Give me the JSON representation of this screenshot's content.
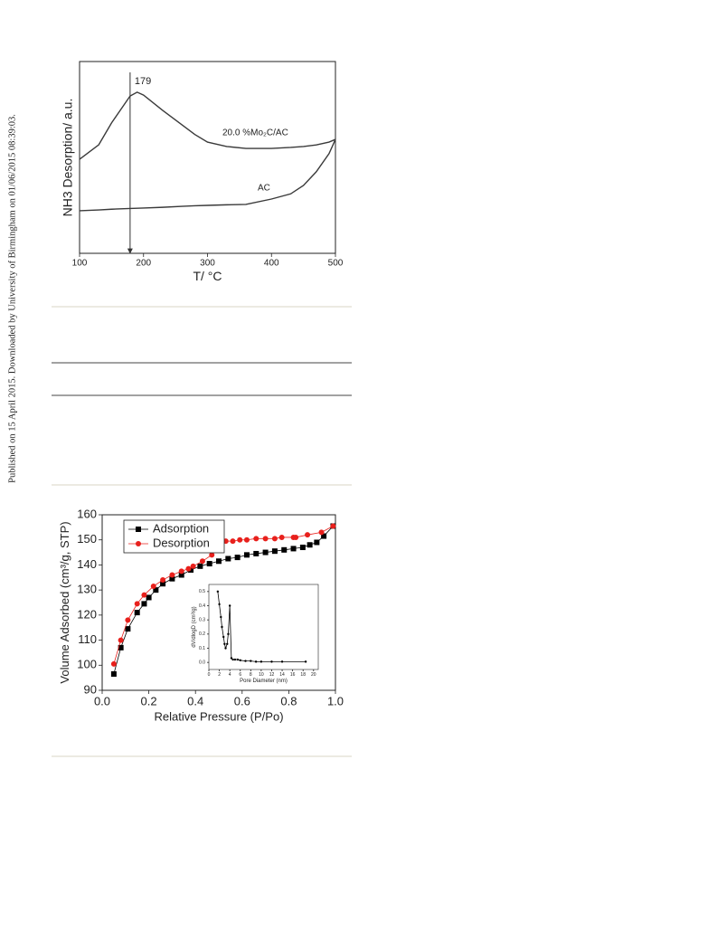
{
  "side_note": "Published on 15 April 2015. Downloaded by University of Birmingham on 01/06/2015 08:39:03.",
  "chart_data": [
    {
      "type": "line",
      "x_label": "T/ °C",
      "y_label": "NH3 Desorption/ a.u.",
      "x": [
        100,
        130,
        150,
        179,
        190,
        200,
        230,
        260,
        280,
        300,
        330,
        360,
        400,
        430,
        450,
        470,
        490,
        500
      ],
      "series": [
        {
          "name": "20.0 %Mo₂C/AC",
          "color": "#3a3a3a",
          "values": [
            49,
            56.6,
            68,
            82,
            84,
            82.5,
            74.5,
            67,
            62,
            58,
            55.7,
            54.7,
            54.7,
            55.2,
            55.7,
            56.5,
            58,
            59.4
          ]
        },
        {
          "name": "AC",
          "color": "#3a3a3a",
          "values": [
            22.2,
            22.6,
            23,
            23.4,
            23.5,
            23.6,
            24,
            24.5,
            24.8,
            25,
            25.3,
            25.5,
            28.3,
            31,
            35.4,
            42.5,
            52,
            59.4
          ]
        }
      ],
      "annotations": [
        {
          "text": "179",
          "x": 179
        }
      ],
      "xlim": [
        100,
        500
      ],
      "xticks": [
        100,
        200,
        300,
        400,
        500
      ],
      "ylim": [
        0,
        100
      ]
    },
    {
      "type": "scatter",
      "x_label": "Relative Pressure (P/Po)",
      "y_label": "Volume Adsorbed (cm³/g, STP)",
      "legend": "upper left",
      "series": [
        {
          "name": "Adsorption",
          "color": "#000000",
          "marker": "square",
          "x": [
            0.05,
            0.08,
            0.11,
            0.15,
            0.18,
            0.2,
            0.23,
            0.26,
            0.3,
            0.34,
            0.38,
            0.42,
            0.46,
            0.5,
            0.54,
            0.58,
            0.62,
            0.66,
            0.7,
            0.74,
            0.78,
            0.82,
            0.86,
            0.89,
            0.92,
            0.95,
            0.99
          ],
          "values": [
            96.5,
            107,
            114.5,
            121,
            124.5,
            127,
            130,
            132.5,
            134.5,
            136,
            138,
            139.5,
            140.5,
            141.5,
            142.5,
            143,
            144,
            144.5,
            145,
            145.5,
            146,
            146.5,
            147,
            148,
            149,
            151.5,
            155.5
          ]
        },
        {
          "name": "Desorption",
          "color": "#e8201c",
          "marker": "circle",
          "x": [
            0.05,
            0.08,
            0.11,
            0.15,
            0.18,
            0.22,
            0.26,
            0.3,
            0.34,
            0.37,
            0.39,
            0.43,
            0.47,
            0.5,
            0.53,
            0.56,
            0.59,
            0.62,
            0.66,
            0.7,
            0.74,
            0.77,
            0.82,
            0.83,
            0.88,
            0.94,
            0.99
          ],
          "values": [
            100.5,
            110,
            118,
            124.5,
            128,
            131.5,
            134,
            136,
            137.5,
            138.5,
            139.5,
            141.5,
            144,
            149,
            149.5,
            149.5,
            150,
            150,
            150.5,
            150.5,
            150.5,
            151,
            151,
            151,
            152,
            153,
            155.5
          ]
        }
      ],
      "xlim": [
        0,
        1
      ],
      "xticks": [
        {
          "value": 0,
          "label": "0.0"
        },
        0.2,
        0.4,
        0.6,
        0.8,
        {
          "value": 1,
          "label": "1.0"
        }
      ],
      "ylim": [
        90,
        160
      ],
      "yticks": [
        90,
        100,
        110,
        120,
        130,
        140,
        150,
        160
      ]
    },
    {
      "type": "scatter",
      "x_label": "Pore Diameter (nm)",
      "y_label": "dV/dlogD (cm³/g)",
      "series": [
        {
          "color": "#000000",
          "marker": "dot",
          "x": [
            1.7,
            2.0,
            2.3,
            2.5,
            2.8,
            3.0,
            3.2,
            3.5,
            3.7,
            4.0,
            4.3,
            4.6,
            5,
            5.5,
            6,
            7,
            8,
            9,
            10,
            12,
            14,
            18.5
          ],
          "values": [
            0.5,
            0.41,
            0.32,
            0.25,
            0.18,
            0.13,
            0.1,
            0.13,
            0.2,
            0.4,
            0.03,
            0.02,
            0.02,
            0.02,
            0.015,
            0.01,
            0.01,
            0.005,
            0.005,
            0.005,
            0.005,
            0.005
          ]
        }
      ],
      "xlim": [
        0,
        20.9
      ],
      "xticks": [
        0,
        2,
        4,
        6,
        8,
        10,
        12,
        14,
        16,
        18,
        20
      ],
      "ylim": [
        -0.05,
        0.55
      ],
      "yticks": [
        {
          "value": 0,
          "label": "0.0"
        },
        0.1,
        0.2,
        0.3,
        0.4,
        0.5
      ]
    }
  ]
}
